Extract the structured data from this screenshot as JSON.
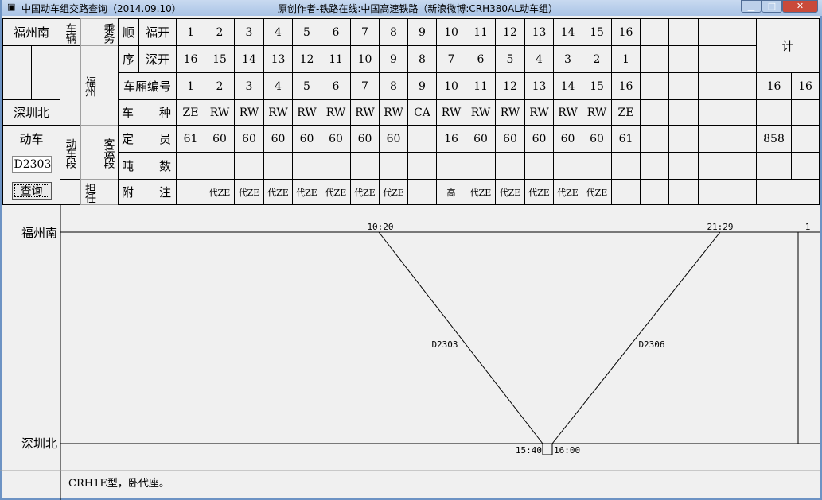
{
  "window": {
    "title": "中国动车组交路查询（2014.09.10）",
    "credit": "原创作者-铁路在线:中国高速铁路（新浪微博:CRH380AL动车组）"
  },
  "header": {
    "start_station": "福州南",
    "end_station": "深圳北",
    "vehicle_label": "车辆",
    "vehicle_depot": "福州",
    "crew_label": "乘务",
    "emu_label": "动车",
    "emu_depot_label": "动车段",
    "assigned_label": "担任",
    "passenger_depot_label": "客运段",
    "train_input_value": "D2303",
    "query_button": "查询",
    "order_label_1": "顺",
    "order_label_2": "序",
    "fu_kai": "福开",
    "shen_kai": "深开",
    "car_no_label": "车厢编号",
    "type_label": [
      "车",
      "种"
    ],
    "capacity_label": [
      "定",
      "员"
    ],
    "tonnage_label": [
      "吨",
      "数"
    ],
    "remarks_label": [
      "附",
      "注"
    ],
    "total_label": "计"
  },
  "cars": {
    "fu_kai": [
      "1",
      "2",
      "3",
      "4",
      "5",
      "6",
      "7",
      "8",
      "9",
      "10",
      "11",
      "12",
      "13",
      "14",
      "15",
      "16"
    ],
    "shen_kai": [
      "16",
      "15",
      "14",
      "13",
      "12",
      "11",
      "10",
      "9",
      "8",
      "7",
      "6",
      "5",
      "4",
      "3",
      "2",
      "1"
    ],
    "car_no": [
      "1",
      "2",
      "3",
      "4",
      "5",
      "6",
      "7",
      "8",
      "9",
      "10",
      "11",
      "12",
      "13",
      "14",
      "15",
      "16"
    ],
    "type": [
      "ZE",
      "RW",
      "RW",
      "RW",
      "RW",
      "RW",
      "RW",
      "RW",
      "CA",
      "RW",
      "RW",
      "RW",
      "RW",
      "RW",
      "RW",
      "ZE"
    ],
    "capacity": [
      "61",
      "60",
      "60",
      "60",
      "60",
      "60",
      "60",
      "60",
      "",
      "16",
      "60",
      "60",
      "60",
      "60",
      "60",
      "61"
    ],
    "tonnage": [
      "",
      "",
      "",
      "",
      "",
      "",
      "",
      "",
      "",
      "",
      "",
      "",
      "",
      "",
      "",
      ""
    ],
    "remarks": [
      "",
      "代ZE",
      "代ZE",
      "代ZE",
      "代ZE",
      "代ZE",
      "代ZE",
      "代ZE",
      "",
      "高",
      "代ZE",
      "代ZE",
      "代ZE",
      "代ZE",
      "代ZE",
      ""
    ]
  },
  "totals": {
    "car_count_a": "16",
    "car_count_b": "16",
    "capacity_total": "858"
  },
  "diagram": {
    "top_station": "福州南",
    "bottom_station": "深圳北",
    "count": "1",
    "trains": [
      {
        "name": "D2303",
        "depart": "10:20",
        "arrive": "15:40"
      },
      {
        "name": "D2306",
        "depart": "16:00",
        "arrive": "21:29"
      }
    ]
  },
  "footer": {
    "note": "CRH1E型，卧代座。"
  }
}
